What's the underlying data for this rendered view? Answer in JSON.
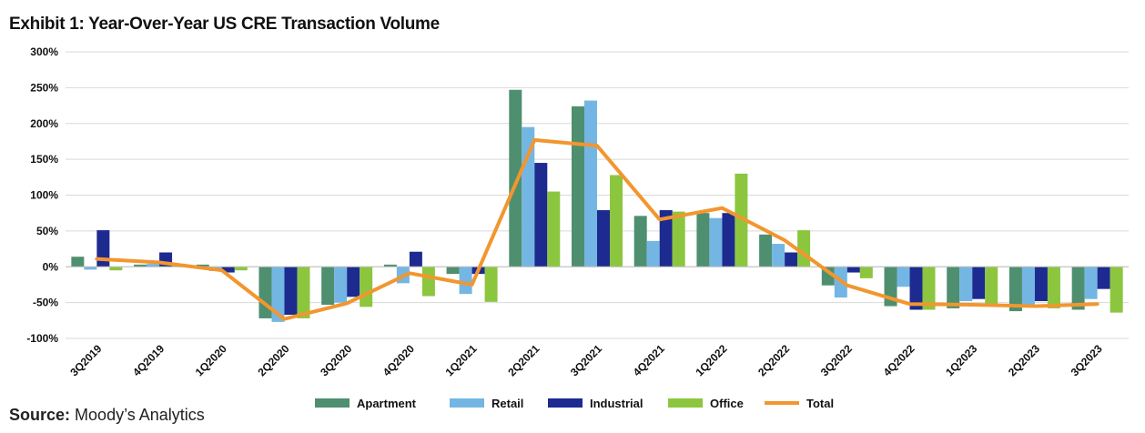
{
  "title": "Exhibit 1: Year-Over-Year US CRE Transaction Volume",
  "source": {
    "label": "Source:",
    "text": "Moody’s Analytics"
  },
  "colors": {
    "Apartment": "#4e8f6f",
    "Retail": "#74b6e3",
    "Industrial": "#1d2a8f",
    "Office": "#8cc63f",
    "Total": "#f2962f",
    "grid": "#d9d9d9"
  },
  "chart_data": {
    "type": "bar",
    "categories": [
      "3Q2019",
      "4Q2019",
      "1Q2020",
      "2Q2020",
      "3Q2020",
      "4Q2020",
      "1Q2021",
      "2Q2021",
      "3Q2021",
      "4Q2021",
      "1Q2022",
      "2Q2022",
      "3Q2022",
      "4Q2022",
      "1Q2023",
      "2Q2023",
      "3Q2023"
    ],
    "series": [
      {
        "name": "Apartment",
        "kind": "bar",
        "values": [
          14,
          3,
          3,
          -72,
          -53,
          3,
          -10,
          247,
          224,
          71,
          75,
          45,
          -26,
          -55,
          -58,
          -62,
          -60
        ]
      },
      {
        "name": "Retail",
        "kind": "bar",
        "values": [
          -4,
          4,
          -6,
          -77,
          -50,
          -23,
          -38,
          195,
          232,
          36,
          68,
          32,
          -43,
          -28,
          -48,
          -53,
          -45
        ]
      },
      {
        "name": "Industrial",
        "kind": "bar",
        "values": [
          51,
          20,
          -8,
          -67,
          -42,
          21,
          -10,
          145,
          79,
          79,
          75,
          20,
          -8,
          -60,
          -45,
          -48,
          -31
        ]
      },
      {
        "name": "Office",
        "kind": "bar",
        "values": [
          -5,
          2,
          -5,
          -72,
          -56,
          -41,
          -49,
          105,
          128,
          77,
          130,
          51,
          -16,
          -60,
          -55,
          -58,
          -64
        ]
      },
      {
        "name": "Total",
        "kind": "line",
        "values": [
          11,
          6,
          -5,
          -73,
          -51,
          -9,
          -25,
          177,
          169,
          66,
          82,
          37,
          -26,
          -52,
          -53,
          -55,
          -52
        ]
      }
    ],
    "yticks": [
      "300%",
      "250%",
      "200%",
      "150%",
      "100%",
      "50%",
      "0%",
      "-50%",
      "-100%"
    ],
    "ylim": [
      -100,
      300
    ],
    "ytick_values": [
      300,
      250,
      200,
      150,
      100,
      50,
      0,
      -50,
      -100
    ],
    "grid": true,
    "legend": "bottom-center",
    "xlabel": "",
    "ylabel": ""
  }
}
